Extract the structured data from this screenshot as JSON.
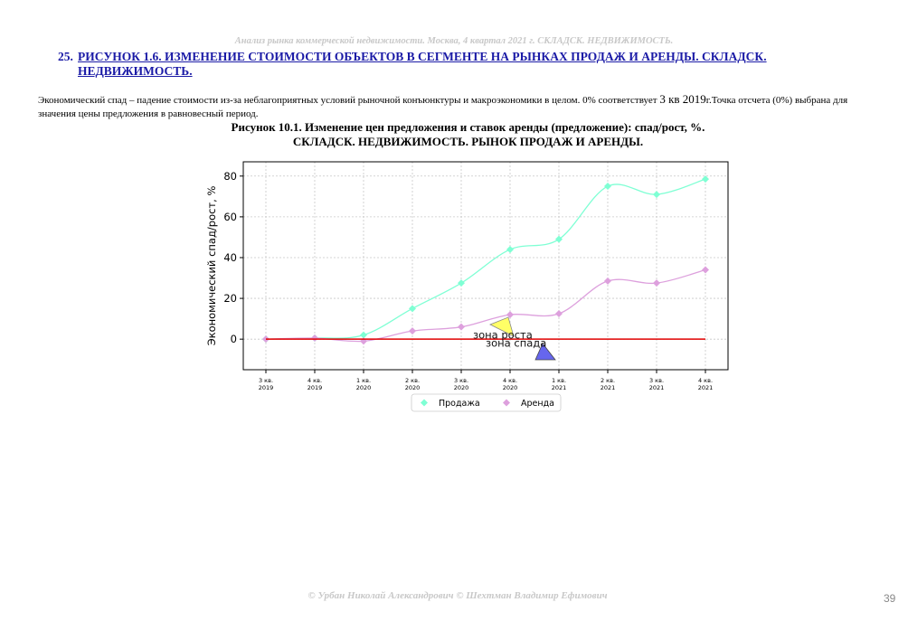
{
  "page": {
    "header": "Анализ рынка коммерческой недвижимости.  Москва,  4 квартал 2021 г.  СКЛАДСК. НЕДВИЖИМОСТЬ.",
    "heading_number": "25.",
    "heading_text": "РИСУНОК 1.6. ИЗМЕНЕНИЕ СТОИМОСТИ ОБЪЕКТОВ В СЕГМЕНТЕ НА РЫНКАХ ПРОДАЖ И АРЕНДЫ. СКЛАДСК. НЕДВИЖИМОСТЬ.",
    "paragraph_a": "Экономический спад – падение стоимости из-за неблагоприятных условий рыночной конъюнктуры и макроэкономики в целом. 0% соответствует",
    "paragraph_b": "3 кв 2019",
    "paragraph_c": "г.Точка отсчета (0%) выбрана для значения цены предложения в равновесный период.",
    "figure_title_1": "Рисунок 10.1. Изменение цен предложения и ставок аренды (предложение): спад/рост, %.",
    "figure_title_2": "СКЛАДСК. НЕДВИЖИМОСТЬ. РЫНОК ПРОДАЖ И АРЕНДЫ.",
    "footer": "© Урбан Николай Александрович   © Шехтман Владимир Ефимович",
    "page_number": "39"
  },
  "chart_data": {
    "type": "line",
    "ylabel": "Экономический спад/рост, %",
    "xlabel": "",
    "categories": [
      [
        "3 кв.",
        "2019"
      ],
      [
        "4 кв.",
        "2019"
      ],
      [
        "1 кв.",
        "2020"
      ],
      [
        "2 кв.",
        "2020"
      ],
      [
        "3 кв.",
        "2020"
      ],
      [
        "4 кв.",
        "2020"
      ],
      [
        "1 кв.",
        "2021"
      ],
      [
        "2 кв.",
        "2021"
      ],
      [
        "3 кв.",
        "2021"
      ],
      [
        "4 кв.",
        "2021"
      ]
    ],
    "ylim": [
      -15,
      87
    ],
    "yticks": [
      0,
      20,
      40,
      60,
      80
    ],
    "grid": true,
    "legend_position": "bottom-center",
    "series": [
      {
        "name": "Продажа",
        "color": "#7fffd4",
        "values": [
          0,
          0.5,
          2,
          15,
          27.5,
          44,
          49,
          75,
          71,
          78.5
        ]
      },
      {
        "name": "Аренда",
        "color": "#dda0dd",
        "values": [
          0,
          0.5,
          -1,
          4,
          6,
          12,
          12.5,
          28.5,
          27.5,
          34
        ]
      }
    ],
    "baseline": {
      "value": 0,
      "color": "#e00000"
    },
    "annotations": [
      {
        "label": "зона роста",
        "color": "#ffff66"
      },
      {
        "label": "зона спада",
        "color": "#6666ee"
      }
    ]
  }
}
